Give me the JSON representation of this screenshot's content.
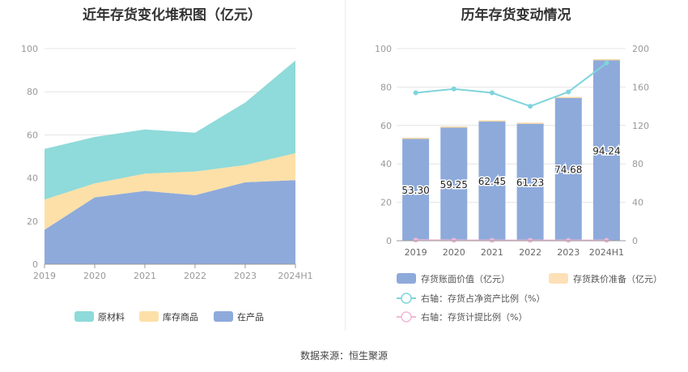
{
  "source_label": "数据来源：恒生聚源",
  "chart_data": [
    {
      "type": "area",
      "stacked": true,
      "title": "近年存货变化堆积图（亿元）",
      "x": [
        "2019",
        "2020",
        "2021",
        "2022",
        "2023",
        "2024H1"
      ],
      "ylim": [
        0,
        100
      ],
      "yticks": [
        0,
        20,
        40,
        60,
        80,
        100
      ],
      "grid": true,
      "legend_position": "bottom",
      "series": [
        {
          "name": "在产品",
          "color": "#8eaadb",
          "values": [
            16,
            31,
            34,
            32,
            38,
            39
          ]
        },
        {
          "name": "库存商品",
          "color": "#fde0a8",
          "values": [
            14,
            6.5,
            8,
            11,
            8,
            12.5
          ]
        },
        {
          "name": "原材料",
          "color": "#8fdada",
          "values": [
            23.5,
            21.5,
            20.5,
            18,
            29,
            43
          ]
        }
      ],
      "legend_order": [
        "原材料",
        "库存商品",
        "在产品"
      ]
    },
    {
      "type": "bar",
      "title": "历年存货变动情况",
      "categories": [
        "2019",
        "2020",
        "2021",
        "2022",
        "2023",
        "2024H1"
      ],
      "ylim": [
        0,
        100
      ],
      "yticks": [
        0,
        20,
        40,
        60,
        80,
        100
      ],
      "y2lim": [
        0,
        200
      ],
      "y2ticks": [
        0,
        40,
        80,
        120,
        160,
        200
      ],
      "grid": true,
      "legend_position": "bottom",
      "series": [
        {
          "name": "存货账面价值（亿元）",
          "type": "bar",
          "axis": "left",
          "color": "#8eaadb",
          "values": [
            53.3,
            59.25,
            62.45,
            61.23,
            74.68,
            94.24
          ],
          "labels": [
            "53.30",
            "59.25",
            "62.45",
            "61.23",
            "74.68",
            "94.24"
          ]
        },
        {
          "name": "存货跌价准备（亿元）",
          "type": "bar",
          "axis": "left",
          "color": "#fde0b8",
          "values": [
            0.3,
            0.2,
            0.2,
            0.2,
            0.2,
            0.3
          ]
        },
        {
          "name": "右轴：存货占净资产比例（%）",
          "type": "line",
          "axis": "right",
          "color": "#7fd4dc",
          "values": [
            154,
            158,
            154,
            140,
            155,
            185
          ]
        },
        {
          "name": "右轴：存货计提比例（%）",
          "type": "line",
          "axis": "right",
          "color": "#f2b8d8",
          "values": [
            0.6,
            0.4,
            0.3,
            0.3,
            0.3,
            0.3
          ]
        }
      ]
    }
  ]
}
